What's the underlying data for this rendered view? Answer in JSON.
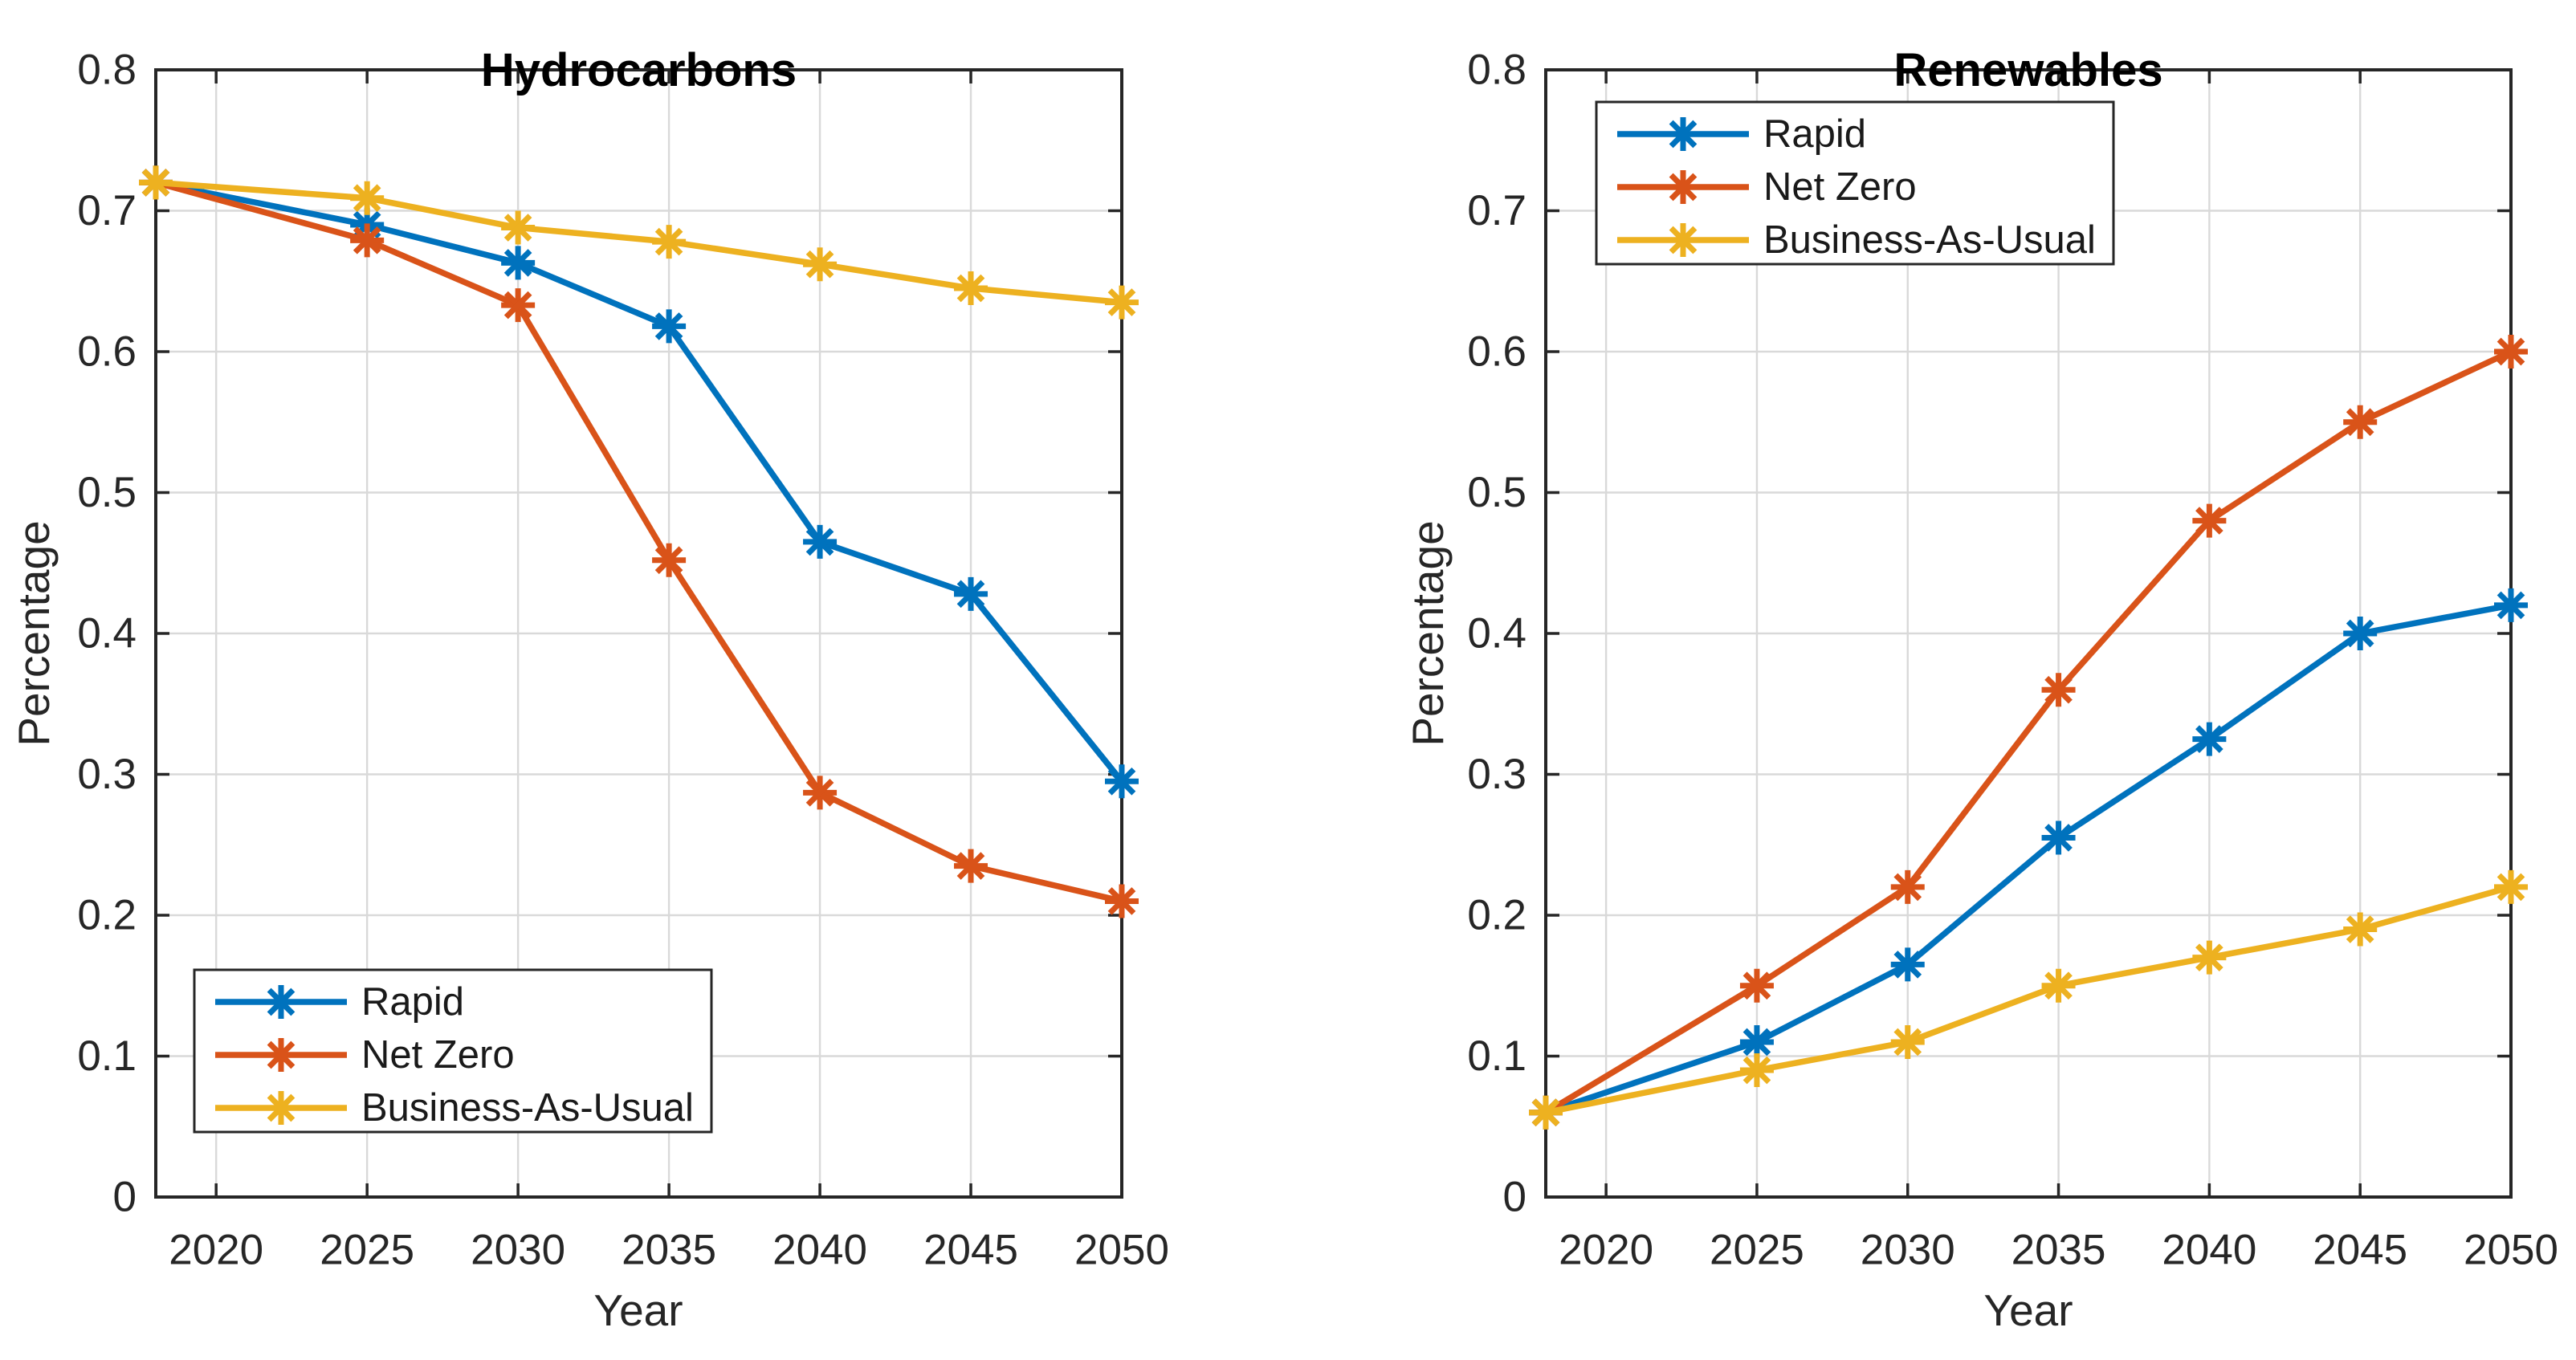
{
  "figure": {
    "background": "#ffffff",
    "axis_color": "#262626",
    "grid_color": "#d9d9d9",
    "title_color": "#000000"
  },
  "chart_data": [
    {
      "type": "line",
      "title": "Hydrocarbons",
      "xlabel": "Year",
      "ylabel": "Percentage",
      "marker": "asterisk",
      "grid": true,
      "xlim": [
        2018,
        2050
      ],
      "ylim": [
        0,
        0.8
      ],
      "xticks": [
        2020,
        2025,
        2030,
        2035,
        2040,
        2045,
        2050
      ],
      "xtick_labels": [
        "2020",
        "2025",
        "2030",
        "2035",
        "2040",
        "2045",
        "2050"
      ],
      "yticks": [
        0,
        0.1,
        0.2,
        0.3,
        0.4,
        0.5,
        0.6,
        0.7,
        0.8
      ],
      "ytick_labels": [
        "0",
        "0.1",
        "0.2",
        "0.3",
        "0.4",
        "0.5",
        "0.6",
        "0.7",
        "0.8"
      ],
      "x": [
        2018,
        2025,
        2030,
        2035,
        2040,
        2045,
        2050
      ],
      "series": [
        {
          "name": "Rapid",
          "color": "#0072BD",
          "values": [
            0.72,
            0.69,
            0.663,
            0.618,
            0.465,
            0.428,
            0.295
          ]
        },
        {
          "name": "Net Zero",
          "color": "#D95319",
          "values": [
            0.72,
            0.679,
            0.633,
            0.452,
            0.287,
            0.235,
            0.21
          ]
        },
        {
          "name": "Business-As-Usual",
          "color": "#EDB120",
          "values": [
            0.72,
            0.709,
            0.688,
            0.678,
            0.662,
            0.645,
            0.635
          ]
        }
      ],
      "legend": {
        "position": "bottom-left",
        "entries": [
          "Rapid",
          "Net Zero",
          "Business-As-Usual"
        ]
      }
    },
    {
      "type": "line",
      "title": "Renewables",
      "xlabel": "Year",
      "ylabel": "Percentage",
      "marker": "asterisk",
      "grid": true,
      "xlim": [
        2018,
        2050
      ],
      "ylim": [
        0,
        0.8
      ],
      "xticks": [
        2020,
        2025,
        2030,
        2035,
        2040,
        2045,
        2050
      ],
      "xtick_labels": [
        "2020",
        "2025",
        "2030",
        "2035",
        "2040",
        "2045",
        "2050"
      ],
      "yticks": [
        0,
        0.1,
        0.2,
        0.3,
        0.4,
        0.5,
        0.6,
        0.7,
        0.8
      ],
      "ytick_labels": [
        "0",
        "0.1",
        "0.2",
        "0.3",
        "0.4",
        "0.5",
        "0.6",
        "0.7",
        "0.8"
      ],
      "x": [
        2018,
        2025,
        2030,
        2035,
        2040,
        2045,
        2050
      ],
      "series": [
        {
          "name": "Rapid",
          "color": "#0072BD",
          "values": [
            0.06,
            0.11,
            0.165,
            0.255,
            0.325,
            0.4,
            0.42
          ]
        },
        {
          "name": "Net Zero",
          "color": "#D95319",
          "values": [
            0.06,
            0.15,
            0.22,
            0.36,
            0.48,
            0.55,
            0.6
          ]
        },
        {
          "name": "Business-As-Usual",
          "color": "#EDB120",
          "values": [
            0.06,
            0.09,
            0.11,
            0.15,
            0.17,
            0.19,
            0.22
          ]
        }
      ],
      "legend": {
        "position": "top-left",
        "entries": [
          "Rapid",
          "Net Zero",
          "Business-As-Usual"
        ]
      }
    }
  ]
}
